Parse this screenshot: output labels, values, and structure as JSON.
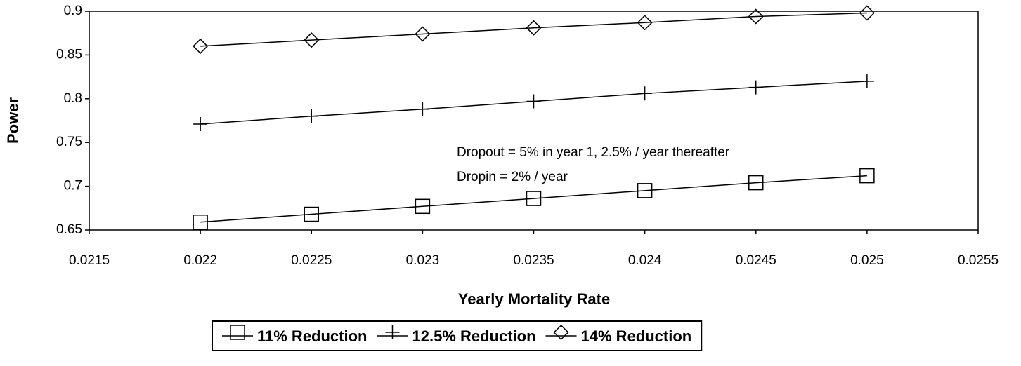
{
  "chart_data": {
    "type": "line",
    "x": [
      0.022,
      0.0225,
      0.023,
      0.0235,
      0.024,
      0.0245,
      0.025
    ],
    "series": [
      {
        "name": "11% Reduction",
        "color": "#000000",
        "marker": "square",
        "values": [
          0.659,
          0.668,
          0.677,
          0.686,
          0.695,
          0.704,
          0.712
        ]
      },
      {
        "name": "12.5% Reduction",
        "color": "#000000",
        "marker": "plus",
        "values": [
          0.771,
          0.78,
          0.788,
          0.797,
          0.806,
          0.813,
          0.82
        ]
      },
      {
        "name": "14% Reduction",
        "color": "#000000",
        "marker": "diamond",
        "values": [
          0.86,
          0.867,
          0.874,
          0.881,
          0.887,
          0.894,
          0.898
        ]
      }
    ],
    "xlabel": "Yearly Mortality Rate",
    "ylabel": "Power",
    "xlim": [
      0.0215,
      0.0255
    ],
    "xticks": [
      0.0215,
      0.022,
      0.0225,
      0.023,
      0.0235,
      0.024,
      0.0245,
      0.025,
      0.0255
    ],
    "ylim": [
      0.65,
      0.9
    ],
    "yticks": [
      0.65,
      0.7,
      0.75,
      0.8,
      0.85,
      0.9
    ],
    "annotations": [
      "Dropout = 5% in year 1, 2.5% / year thereafter",
      "Dropin = 2% / year"
    ],
    "grid": false,
    "legend": "bottom"
  }
}
